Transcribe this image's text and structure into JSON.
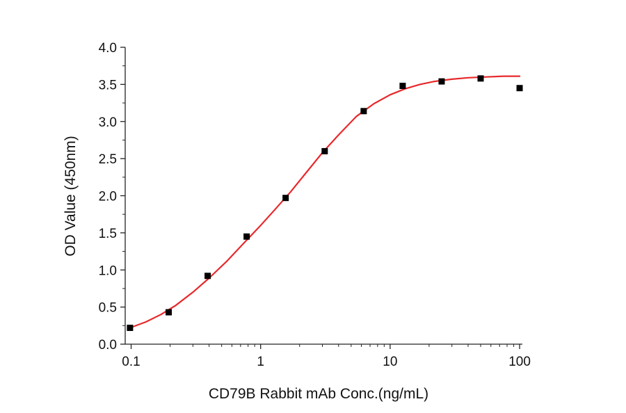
{
  "chart_data": {
    "type": "scatter",
    "title": "",
    "xlabel": "CD79B Rabbit mAb Conc.(ng/mL)",
    "ylabel": "OD Value (450nm)",
    "x_scale": "log",
    "xlim": [
      0.09,
      105
    ],
    "ylim": [
      0,
      4.0
    ],
    "x_ticks": [
      0.1,
      1,
      10,
      100
    ],
    "x_tick_labels": [
      "0.1",
      "1",
      "10",
      "100"
    ],
    "y_ticks": [
      0,
      0.5,
      1.0,
      1.5,
      2.0,
      2.5,
      3.0,
      3.5,
      4.0
    ],
    "y_tick_labels": [
      "0.0",
      "0.5",
      "1.0",
      "1.5",
      "2.0",
      "2.5",
      "3.0",
      "3.5",
      "4.0"
    ],
    "grid": false,
    "legend": "none",
    "series": [
      {
        "type": "scatter",
        "marker": "square",
        "color": "#000000",
        "x": [
          0.098,
          0.195,
          0.39,
          0.78,
          1.56,
          3.125,
          6.25,
          12.5,
          25,
          50,
          100
        ],
        "y": [
          0.22,
          0.43,
          0.92,
          1.45,
          1.97,
          2.6,
          3.14,
          3.48,
          3.54,
          3.58,
          3.45
        ]
      },
      {
        "type": "line",
        "color": "#e8282b",
        "x": [
          0.098,
          0.13,
          0.17,
          0.22,
          0.3,
          0.4,
          0.55,
          0.75,
          1.0,
          1.3,
          1.7,
          2.2,
          3.0,
          4.0,
          5.5,
          7.5,
          10,
          13,
          17,
          22,
          30,
          40,
          55,
          75,
          100
        ],
        "y": [
          0.22,
          0.3,
          0.4,
          0.52,
          0.7,
          0.89,
          1.12,
          1.37,
          1.6,
          1.82,
          2.05,
          2.29,
          2.58,
          2.82,
          3.07,
          3.24,
          3.36,
          3.44,
          3.5,
          3.54,
          3.57,
          3.59,
          3.6,
          3.61,
          3.61
        ]
      }
    ]
  }
}
